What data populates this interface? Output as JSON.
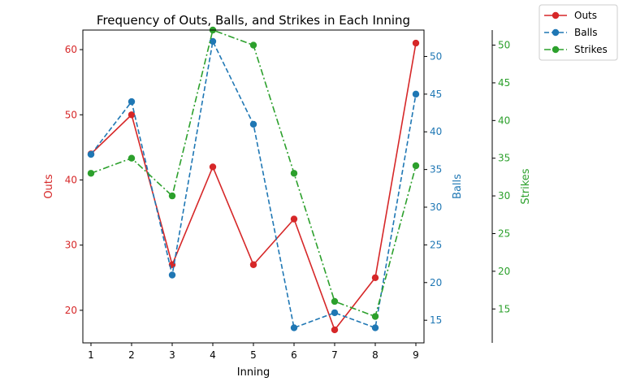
{
  "chart_data": {
    "type": "line",
    "title": "Frequency of Outs, Balls, and Strikes in Each Inning",
    "xlabel": "Inning",
    "categories": [
      "1",
      "2",
      "3",
      "4",
      "5",
      "6",
      "7",
      "8",
      "9"
    ],
    "x": [
      1,
      2,
      3,
      4,
      5,
      6,
      7,
      8,
      9
    ],
    "xlim": [
      0.8,
      9.2
    ],
    "grid": false,
    "legend_placement": "top-right",
    "axes": [
      {
        "key": "outs",
        "label": "Outs",
        "side": "left",
        "color": "#d62728",
        "ylim": [
          15,
          63
        ],
        "ticks": [
          20,
          30,
          40,
          50,
          60
        ]
      },
      {
        "key": "balls",
        "label": "Balls",
        "side": "right",
        "color": "#1f77b4",
        "ylim": [
          12,
          53.5
        ],
        "ticks": [
          15,
          20,
          25,
          30,
          35,
          40,
          45,
          50
        ]
      },
      {
        "key": "strikes",
        "label": "Strikes",
        "side": "right-outer",
        "color": "#2ca02c",
        "ylim": [
          10.5,
          52
        ],
        "ticks": [
          15,
          20,
          25,
          30,
          35,
          40,
          45,
          50
        ]
      }
    ],
    "series": [
      {
        "name": "Outs",
        "axis": "outs",
        "color": "#d62728",
        "linestyle": "solid",
        "values": [
          44,
          50,
          27,
          42,
          27,
          34,
          17,
          25,
          61
        ]
      },
      {
        "name": "Balls",
        "axis": "balls",
        "color": "#1f77b4",
        "linestyle": "dashed",
        "values": [
          37,
          44,
          21,
          52,
          41,
          14,
          16,
          14,
          45
        ]
      },
      {
        "name": "Strikes",
        "axis": "strikes",
        "color": "#2ca02c",
        "linestyle": "dashdot",
        "values": [
          33,
          35,
          30,
          52,
          50,
          33,
          16,
          14,
          34
        ]
      }
    ]
  }
}
